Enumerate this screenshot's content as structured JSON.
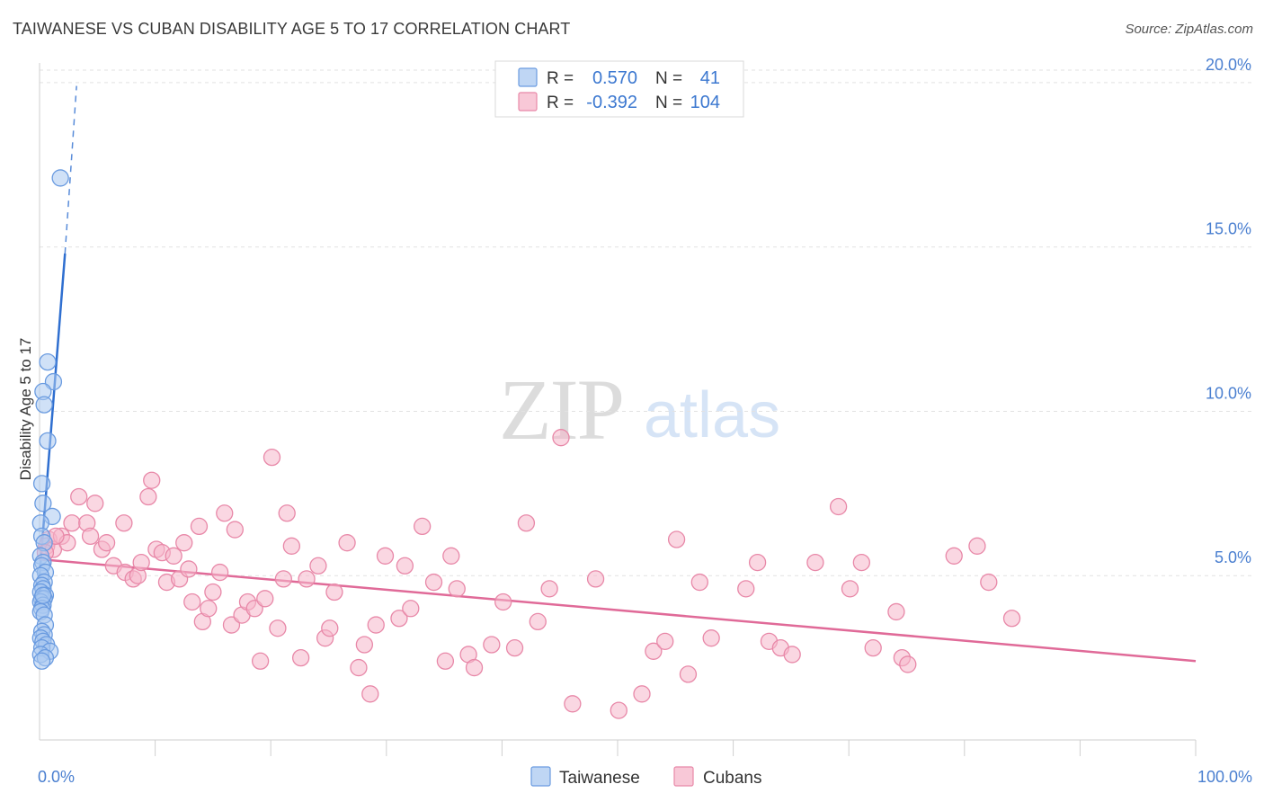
{
  "title": "TAIWANESE VS CUBAN DISABILITY AGE 5 TO 17 CORRELATION CHART",
  "source": "Source: ZipAtlas.com",
  "watermark": {
    "zip": "ZIP",
    "atlas": "atlas"
  },
  "colors": {
    "taiwanese_fill": "#a9c8f0",
    "taiwanese_stroke": "#6a9be0",
    "taiwanese_line": "#2f6fd0",
    "cubans_fill": "#f6b6ca",
    "cubans_stroke": "#e888a8",
    "cubans_line": "#e06a98",
    "grid": "#e2e2e2",
    "tick_text": "#4a7fd0"
  },
  "legend": {
    "rows": [
      {
        "r_label": "R =",
        "r_value": "0.570",
        "n_label": "N =",
        "n_value": "41"
      },
      {
        "r_label": "R =",
        "r_value": "-0.392",
        "n_label": "N =",
        "n_value": "104"
      }
    ]
  },
  "bottom_legend": [
    "Taiwanese",
    "Cubans"
  ],
  "chart_data": {
    "type": "scatter",
    "title": "TAIWANESE VS CUBAN DISABILITY AGE 5 TO 17 CORRELATION CHART",
    "xlabel": "",
    "ylabel": "Disability Age 5 to 17",
    "xlim": [
      0,
      100
    ],
    "ylim": [
      0,
      20.6
    ],
    "x_tick_labels": [
      "0.0%",
      "100.0%"
    ],
    "y_ticks": [
      5,
      10,
      15,
      20
    ],
    "y_tick_labels": [
      "5.0%",
      "10.0%",
      "15.0%",
      "20.0%"
    ],
    "grid": true,
    "series": [
      {
        "name": "Taiwanese",
        "R": 0.57,
        "N": 41,
        "trend": {
          "x0": 0,
          "y0": 5.0,
          "x1": 2.2,
          "y1": 14.8,
          "dashed_to": [
            3.2,
            19.9
          ]
        },
        "points": [
          [
            1.8,
            17.1
          ],
          [
            0.7,
            11.5
          ],
          [
            1.2,
            10.9
          ],
          [
            0.3,
            10.6
          ],
          [
            0.4,
            10.2
          ],
          [
            0.7,
            9.1
          ],
          [
            0.2,
            7.8
          ],
          [
            0.3,
            7.2
          ],
          [
            1.1,
            6.8
          ],
          [
            0.1,
            6.6
          ],
          [
            0.2,
            6.2
          ],
          [
            0.4,
            6.0
          ],
          [
            0.1,
            5.6
          ],
          [
            0.3,
            5.4
          ],
          [
            0.2,
            5.3
          ],
          [
            0.5,
            5.1
          ],
          [
            0.1,
            5.0
          ],
          [
            0.4,
            4.8
          ],
          [
            0.2,
            4.7
          ],
          [
            0.3,
            4.6
          ],
          [
            0.1,
            4.5
          ],
          [
            0.5,
            4.4
          ],
          [
            0.2,
            4.3
          ],
          [
            0.4,
            4.3
          ],
          [
            0.1,
            4.2
          ],
          [
            0.3,
            4.1
          ],
          [
            0.2,
            4.0
          ],
          [
            0.1,
            3.9
          ],
          [
            0.4,
            3.8
          ],
          [
            0.5,
            3.5
          ],
          [
            0.2,
            3.3
          ],
          [
            0.4,
            3.2
          ],
          [
            0.1,
            3.1
          ],
          [
            0.3,
            3.0
          ],
          [
            0.6,
            2.9
          ],
          [
            0.2,
            2.8
          ],
          [
            0.9,
            2.7
          ],
          [
            0.1,
            2.6
          ],
          [
            0.5,
            2.5
          ],
          [
            0.2,
            2.4
          ],
          [
            0.3,
            4.4
          ]
        ]
      },
      {
        "name": "Cubans",
        "R": -0.392,
        "N": 104,
        "trend": {
          "x0": 0,
          "y0": 5.5,
          "x1": 100,
          "y1": 2.4
        },
        "points": [
          [
            0.8,
            6.1
          ],
          [
            0.6,
            5.9
          ],
          [
            1.2,
            5.8
          ],
          [
            0.5,
            5.7
          ],
          [
            1.9,
            6.2
          ],
          [
            2.4,
            6.0
          ],
          [
            1.4,
            6.2
          ],
          [
            2.8,
            6.6
          ],
          [
            3.4,
            7.4
          ],
          [
            4.1,
            6.6
          ],
          [
            4.4,
            6.2
          ],
          [
            4.8,
            7.2
          ],
          [
            5.4,
            5.8
          ],
          [
            5.8,
            6.0
          ],
          [
            6.4,
            5.3
          ],
          [
            7.3,
            6.6
          ],
          [
            7.4,
            5.1
          ],
          [
            8.1,
            4.9
          ],
          [
            8.5,
            5.0
          ],
          [
            8.8,
            5.4
          ],
          [
            9.4,
            7.4
          ],
          [
            9.7,
            7.9
          ],
          [
            10.1,
            5.8
          ],
          [
            10.6,
            5.7
          ],
          [
            11.0,
            4.8
          ],
          [
            11.6,
            5.6
          ],
          [
            12.1,
            4.9
          ],
          [
            12.5,
            6.0
          ],
          [
            12.9,
            5.2
          ],
          [
            13.2,
            4.2
          ],
          [
            13.8,
            6.5
          ],
          [
            14.1,
            3.6
          ],
          [
            14.6,
            4.0
          ],
          [
            15.0,
            4.5
          ],
          [
            15.6,
            5.1
          ],
          [
            16.0,
            6.9
          ],
          [
            16.6,
            3.5
          ],
          [
            16.9,
            6.4
          ],
          [
            17.5,
            3.8
          ],
          [
            18.0,
            4.2
          ],
          [
            18.6,
            4.0
          ],
          [
            19.1,
            2.4
          ],
          [
            19.5,
            4.3
          ],
          [
            20.1,
            8.6
          ],
          [
            20.6,
            3.4
          ],
          [
            21.1,
            4.9
          ],
          [
            21.4,
            6.9
          ],
          [
            21.8,
            5.9
          ],
          [
            22.6,
            2.5
          ],
          [
            23.1,
            4.9
          ],
          [
            24.1,
            5.3
          ],
          [
            24.7,
            3.1
          ],
          [
            25.1,
            3.4
          ],
          [
            25.5,
            4.5
          ],
          [
            26.6,
            6.0
          ],
          [
            27.6,
            2.2
          ],
          [
            28.1,
            2.9
          ],
          [
            28.6,
            1.4
          ],
          [
            29.1,
            3.5
          ],
          [
            29.9,
            5.6
          ],
          [
            31.1,
            3.7
          ],
          [
            31.6,
            5.3
          ],
          [
            32.1,
            4.0
          ],
          [
            33.1,
            6.5
          ],
          [
            34.1,
            4.8
          ],
          [
            35.1,
            2.4
          ],
          [
            35.6,
            5.6
          ],
          [
            36.1,
            4.6
          ],
          [
            37.1,
            2.6
          ],
          [
            37.6,
            2.2
          ],
          [
            39.1,
            2.9
          ],
          [
            40.1,
            4.2
          ],
          [
            41.1,
            2.8
          ],
          [
            42.1,
            6.6
          ],
          [
            43.1,
            3.6
          ],
          [
            44.1,
            4.6
          ],
          [
            45.1,
            9.2
          ],
          [
            46.1,
            1.1
          ],
          [
            48.1,
            4.9
          ],
          [
            50.1,
            0.9
          ],
          [
            52.1,
            1.4
          ],
          [
            53.1,
            2.7
          ],
          [
            54.1,
            3.0
          ],
          [
            55.1,
            6.1
          ],
          [
            56.1,
            2.0
          ],
          [
            57.1,
            4.8
          ],
          [
            58.1,
            3.1
          ],
          [
            61.1,
            4.6
          ],
          [
            62.1,
            5.4
          ],
          [
            63.1,
            3.0
          ],
          [
            64.1,
            2.8
          ],
          [
            65.1,
            2.6
          ],
          [
            67.1,
            5.4
          ],
          [
            69.1,
            7.1
          ],
          [
            70.1,
            4.6
          ],
          [
            71.1,
            5.4
          ],
          [
            72.1,
            2.8
          ],
          [
            74.1,
            3.9
          ],
          [
            74.6,
            2.5
          ],
          [
            75.1,
            2.3
          ],
          [
            79.1,
            5.6
          ],
          [
            81.1,
            5.9
          ],
          [
            82.1,
            4.8
          ],
          [
            84.1,
            3.7
          ]
        ]
      }
    ]
  }
}
